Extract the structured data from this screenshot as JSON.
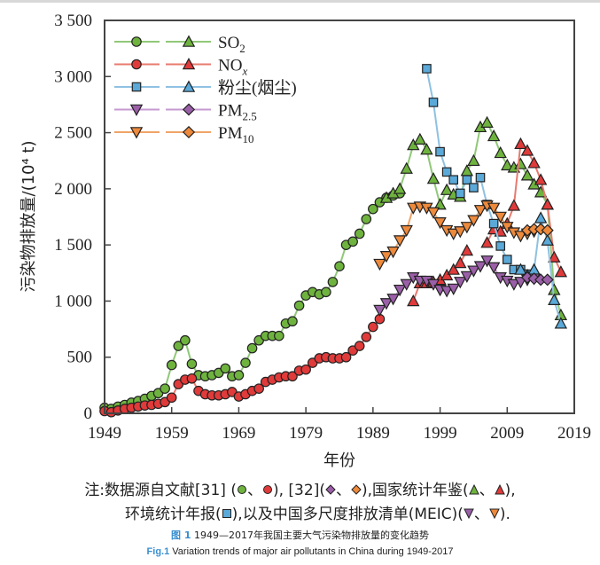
{
  "chart_data": {
    "type": "line",
    "title": "",
    "xlabel": "年份",
    "ylabel": "污染物排放量/(10⁴ t)",
    "xlim": [
      1949,
      2019
    ],
    "ylim": [
      0,
      3500
    ],
    "xticks": [
      1949,
      1959,
      1969,
      1979,
      1989,
      1999,
      2009,
      2019
    ],
    "xtick_labels": [
      "1949",
      "1959",
      "1969",
      "1979",
      "1989",
      "1999",
      "2009",
      "2019"
    ],
    "yticks": [
      0,
      500,
      1000,
      1500,
      2000,
      2500,
      3000,
      3500
    ],
    "ytick_labels": [
      "0",
      "500",
      "1 000",
      "1 500",
      "2 000",
      "2 500",
      "3 000",
      "3 500"
    ],
    "grid": false,
    "legend_position": "top-left",
    "legend": [
      {
        "label": "SO",
        "sub": "2",
        "italic_sub": false,
        "color": "#6fb33f",
        "line_color": "#90c878",
        "markers": [
          "circle",
          "triangle-up"
        ]
      },
      {
        "label": "NO",
        "sub": "x",
        "italic_sub": true,
        "color": "#e03a3a",
        "line_color": "#e87a6e",
        "markers": [
          "circle",
          "triangle-up"
        ]
      },
      {
        "label": "粉尘(烟尘)",
        "sub": "",
        "italic_sub": false,
        "color": "#5aa9d8",
        "line_color": "#8ec1e2",
        "markers": [
          "square",
          "triangle-up"
        ]
      },
      {
        "label": "PM",
        "sub": "2.5",
        "italic_sub": false,
        "color": "#9b5fa8",
        "line_color": "#c69ad0",
        "markers": [
          "triangle-down",
          "diamond"
        ]
      },
      {
        "label": "PM",
        "sub": "10",
        "italic_sub": false,
        "color": "#ee8a3c",
        "line_color": "#f0a468",
        "markers": [
          "triangle-down",
          "diamond"
        ]
      }
    ],
    "series": [
      {
        "name": "SO2 [31]",
        "marker": "circle",
        "color": "#6fb33f",
        "line_color": "#90c878",
        "x": [
          1949,
          1950,
          1951,
          1952,
          1953,
          1954,
          1955,
          1956,
          1957,
          1958,
          1959,
          1960,
          1961,
          1962,
          1963,
          1964,
          1965,
          1966,
          1967,
          1968,
          1969,
          1970,
          1971,
          1972,
          1973,
          1974,
          1975,
          1976,
          1977,
          1978,
          1979,
          1980,
          1981,
          1982,
          1983,
          1984,
          1985,
          1986,
          1987,
          1988,
          1989,
          1990,
          1991,
          1992,
          1993
        ],
        "y": [
          50,
          40,
          60,
          75,
          95,
          110,
          130,
          155,
          180,
          220,
          430,
          600,
          650,
          440,
          340,
          330,
          340,
          360,
          400,
          330,
          340,
          450,
          580,
          650,
          690,
          690,
          690,
          800,
          820,
          960,
          1050,
          1080,
          1060,
          1080,
          1170,
          1310,
          1500,
          1530,
          1600,
          1730,
          1820,
          1880,
          1920,
          1940,
          1960
        ]
      },
      {
        "name": "NOx [31]",
        "marker": "circle",
        "color": "#e03a3a",
        "line_color": "#e87a6e",
        "x": [
          1949,
          1950,
          1951,
          1952,
          1953,
          1954,
          1955,
          1956,
          1957,
          1958,
          1959,
          1960,
          1961,
          1962,
          1963,
          1964,
          1965,
          1966,
          1967,
          1968,
          1969,
          1970,
          1971,
          1972,
          1973,
          1974,
          1975,
          1976,
          1977,
          1978,
          1979,
          1980,
          1981,
          1982,
          1983,
          1984,
          1985,
          1986,
          1987,
          1988,
          1989,
          1990
        ],
        "y": [
          20,
          10,
          25,
          40,
          50,
          60,
          70,
          75,
          85,
          100,
          140,
          260,
          300,
          310,
          200,
          170,
          160,
          160,
          170,
          190,
          150,
          170,
          200,
          220,
          280,
          300,
          320,
          330,
          330,
          380,
          390,
          450,
          490,
          500,
          490,
          490,
          500,
          560,
          600,
          680,
          770,
          840
        ]
      },
      {
        "name": "SO2 统计年鉴",
        "marker": "triangle-up",
        "color": "#6fb33f",
        "line_color": "#90c878",
        "x": [
          1991,
          1992,
          1993,
          1994,
          1995,
          1996,
          1997,
          1998,
          1999,
          2000,
          2001,
          2002,
          2003,
          2004,
          2005,
          2006,
          2007,
          2008,
          2009,
          2010,
          2011,
          2012,
          2013,
          2014,
          2015,
          2016,
          2017
        ],
        "y": [
          1920,
          1960,
          2000,
          2180,
          2390,
          2440,
          2350,
          2090,
          1860,
          1990,
          1950,
          1930,
          2160,
          2250,
          2550,
          2590,
          2470,
          2320,
          2210,
          2190,
          2220,
          2120,
          2040,
          1970,
          1860,
          1100,
          875
        ]
      },
      {
        "name": "NOx 统计年鉴",
        "marker": "triangle-up",
        "color": "#e03a3a",
        "line_color": "#e87a6e",
        "x": [
          1995,
          1996,
          1997,
          1998,
          1999,
          2000,
          2001,
          2002,
          2003,
          2004,
          2005,
          2006,
          2007,
          2008,
          2009,
          2010,
          2011,
          2012,
          2013,
          2014,
          2015,
          2016,
          2017
        ],
        "y": [
          1000,
          1160,
          1160,
          1170,
          1190,
          1230,
          1280,
          1340,
          1450,
          null,
          null,
          1520,
          1640,
          1620,
          1690,
          1850,
          2400,
          2340,
          2230,
          2080,
          1860,
          1390,
          1260
        ]
      },
      {
        "name": "粉尘(烟尘) 环境统计年报",
        "marker": "square",
        "color": "#5aa9d8",
        "line_color": "#8ec1e2",
        "x": [
          1997,
          1998,
          1999,
          2000,
          2001,
          2002,
          2003,
          2004,
          2005,
          2006,
          2007,
          2008,
          2009,
          2010,
          2011,
          2012
        ],
        "y": [
          3070,
          2770,
          2330,
          2150,
          2080,
          1960,
          2080,
          2010,
          2100,
          1860,
          1690,
          1490,
          1370,
          1280,
          1280,
          1240
        ]
      },
      {
        "name": "粉尘(烟尘) 统计年鉴",
        "marker": "triangle-up",
        "color": "#5aa9d8",
        "line_color": "#8ec1e2",
        "x": [
          2011,
          2012,
          2013,
          2014,
          2015,
          2016,
          2017
        ],
        "y": [
          1280,
          1230,
          1280,
          1740,
          1540,
          1010,
          800
        ]
      },
      {
        "name": "PM2.5 MEIC",
        "marker": "triangle-down",
        "color": "#9b5fa8",
        "line_color": "#c69ad0",
        "x": [
          1990,
          1991,
          1992,
          1993,
          1994,
          1995,
          1996,
          1997,
          1998,
          1999,
          2000,
          2001,
          2002,
          2003,
          2004,
          2005,
          2006,
          2007,
          2008,
          2009,
          2010,
          2011,
          2012,
          2013
        ],
        "y": [
          920,
          980,
          1020,
          1100,
          1150,
          1210,
          1180,
          1180,
          1150,
          1100,
          1090,
          1110,
          1170,
          1220,
          1270,
          1310,
          1360,
          1300,
          1210,
          1180,
          1150,
          1170,
          1190,
          1200
        ]
      },
      {
        "name": "PM2.5 [32]",
        "marker": "diamond",
        "color": "#9b5fa8",
        "line_color": "#c69ad0",
        "x": [
          2012,
          2013,
          2014,
          2015
        ],
        "y": [
          1210,
          1200,
          1190,
          1190
        ]
      },
      {
        "name": "PM10 MEIC",
        "marker": "triangle-down",
        "color": "#ee8a3c",
        "line_color": "#f0a468",
        "x": [
          1990,
          1991,
          1992,
          1993,
          1994,
          1995,
          1996,
          1997,
          1998,
          1999,
          2000,
          2001,
          2002,
          2003,
          2004,
          2005,
          2006,
          2007,
          2008,
          2009,
          2010,
          2011,
          2012,
          2013
        ],
        "y": [
          1330,
          1400,
          1440,
          1540,
          1630,
          1830,
          1840,
          1830,
          1790,
          1700,
          1630,
          1600,
          1620,
          1660,
          1720,
          1810,
          1850,
          1830,
          1750,
          1660,
          1610,
          1580,
          1600,
          1620
        ]
      },
      {
        "name": "PM10 [32]",
        "marker": "diamond",
        "color": "#ee8a3c",
        "line_color": "#f0a468",
        "x": [
          2012,
          2013,
          2014,
          2015
        ],
        "y": [
          1630,
          1640,
          1640,
          1630
        ]
      }
    ]
  },
  "notes": {
    "line1_prefix": "注:数据源自文献[31] (",
    "line1_mid1": "、",
    "line1_mid2": "), [32](",
    "line1_mid3": "、",
    "line1_mid4": "),国家统计年鉴(",
    "line1_mid5": "、",
    "line1_suffix": "),",
    "line2_prefix": "环境统计年报(",
    "line2_mid": "),以及中国多尺度排放清单(MEIC)(",
    "line2_mid2": "、",
    "line2_suffix": ")."
  },
  "caption": {
    "cn_label": "图 1",
    "cn_text": "1949—2017年我国主要大气污染物排放量的变化趋势",
    "en_label": "Fig.1",
    "en_text": "Variation trends of major air pollutants in China during 1949-2017"
  }
}
